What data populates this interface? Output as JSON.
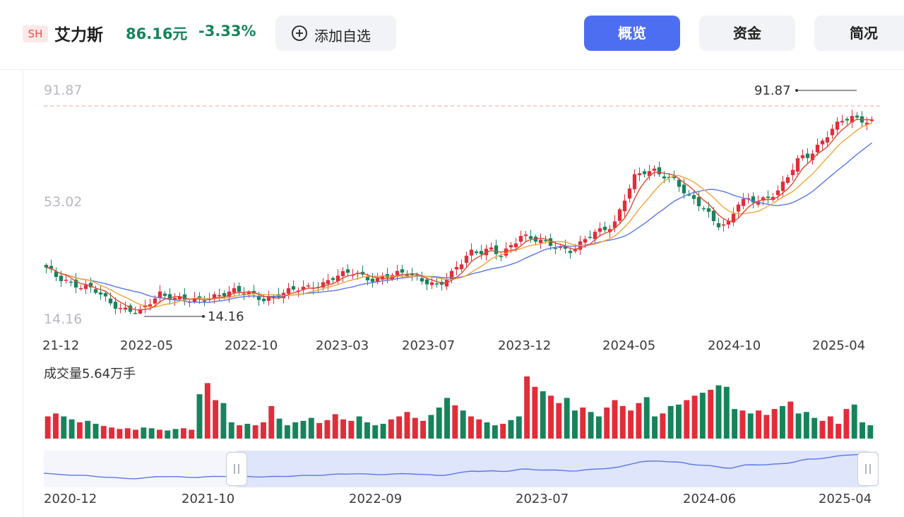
{
  "stock": {
    "market": "SH",
    "name": "艾力斯",
    "price": "86.16元",
    "change_pct": "-3.33%",
    "add_watch_label": "添加自选",
    "down_color": "#16845b",
    "up_color": "#e12d3a"
  },
  "tabs": {
    "overview": "概览",
    "funds": "资金",
    "brief": "简况",
    "active": "overview"
  },
  "chart_data": {
    "type": "candlestick",
    "y_ticks": [
      "91.87",
      "53.02",
      "14.16"
    ],
    "x_ticks": [
      "21-12",
      "2022-05",
      "2022-10",
      "2023-03",
      "2023-07",
      "2023-12",
      "2024-05",
      "2024-10",
      "2025-04"
    ],
    "max_annotation": "91.87",
    "min_annotation": "14.16",
    "ylim": [
      14.16,
      91.87
    ],
    "close_series": [
      31,
      28,
      27,
      25,
      24,
      22,
      19,
      17,
      16,
      14.5,
      18,
      22,
      21,
      20,
      19,
      19,
      21,
      22,
      23,
      22,
      21,
      20,
      21,
      22,
      23,
      24,
      25,
      26,
      28,
      29,
      30,
      28,
      27,
      28,
      29,
      30,
      28,
      26,
      24,
      28,
      33,
      38,
      37,
      38,
      36,
      40,
      44,
      42,
      41,
      40,
      39,
      38,
      41,
      44,
      46,
      48,
      57,
      65,
      67,
      68,
      66,
      64,
      58,
      56,
      53,
      48,
      47,
      55,
      57,
      57,
      58,
      60,
      66,
      73,
      74,
      78,
      82,
      86,
      88,
      87,
      86
    ],
    "ma_colors": {
      "ma5": "#e0492f",
      "ma10": "#f2a33a",
      "ma20": "#5b77e6"
    },
    "volume_label": "成交量5.64万手",
    "volume_values": [
      30,
      34,
      30,
      26,
      22,
      24,
      20,
      17,
      15,
      13,
      14,
      12,
      15,
      14,
      12,
      11,
      13,
      14,
      12,
      60,
      75,
      52,
      48,
      22,
      18,
      20,
      18,
      22,
      44,
      27,
      18,
      22,
      24,
      28,
      21,
      25,
      33,
      26,
      24,
      30,
      22,
      18,
      20,
      26,
      30,
      36,
      28,
      24,
      32,
      42,
      55,
      45,
      38,
      30,
      26,
      22,
      18,
      20,
      25,
      30,
      84,
      70,
      64,
      58,
      48,
      55,
      38,
      42,
      36,
      30,
      42,
      52,
      44,
      38,
      48,
      56,
      30,
      34,
      44,
      46,
      52,
      58,
      62,
      66,
      72,
      70,
      40,
      38,
      34,
      38,
      32,
      40,
      44,
      50,
      34,
      36,
      28,
      24,
      30,
      20,
      40,
      46,
      22,
      18
    ],
    "navigator_dates": [
      "2020-12",
      "2021-10",
      "2022-09",
      "2023-07",
      "2024-06",
      "2025-04"
    ]
  }
}
